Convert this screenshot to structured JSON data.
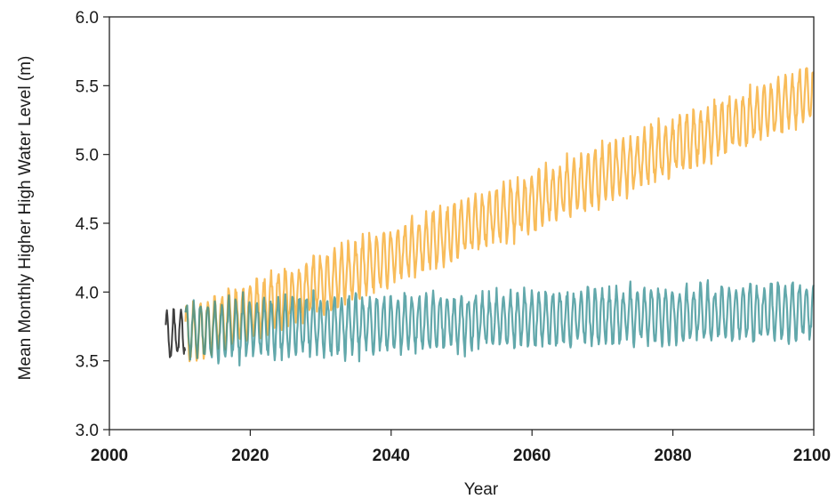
{
  "chart_data": {
    "type": "line",
    "title": "",
    "xlabel": "Year",
    "ylabel": "Mean Monthly Higher High Water Level (m)",
    "xlim": [
      2000,
      2100
    ],
    "ylim": [
      3.0,
      6.0
    ],
    "x_ticks": [
      "2000",
      "2020",
      "2040",
      "2060",
      "2080",
      "2100"
    ],
    "y_ticks": [
      "3.0",
      "3.5",
      "4.0",
      "4.5",
      "5.0",
      "5.5",
      "6.0"
    ],
    "grid": false,
    "legend": "none",
    "series": [
      {
        "color": "#2a2a2a",
        "style": "oscillating monthly",
        "x_range": [
          2008,
          2010.8
        ],
        "baseline": [
          3.68,
          3.7
        ],
        "amplitude": 0.17
      },
      {
        "color": "#f5a623",
        "style": "oscillating monthly",
        "x_range": [
          2010.8,
          2100
        ],
        "baseline": [
          3.68,
          5.45
        ],
        "amplitude": 0.2
      },
      {
        "color": "#2e8b8f",
        "style": "oscillating monthly",
        "x_range": [
          2010.8,
          2100
        ],
        "baseline": [
          3.72,
          3.87
        ],
        "amplitude": 0.2
      }
    ]
  }
}
